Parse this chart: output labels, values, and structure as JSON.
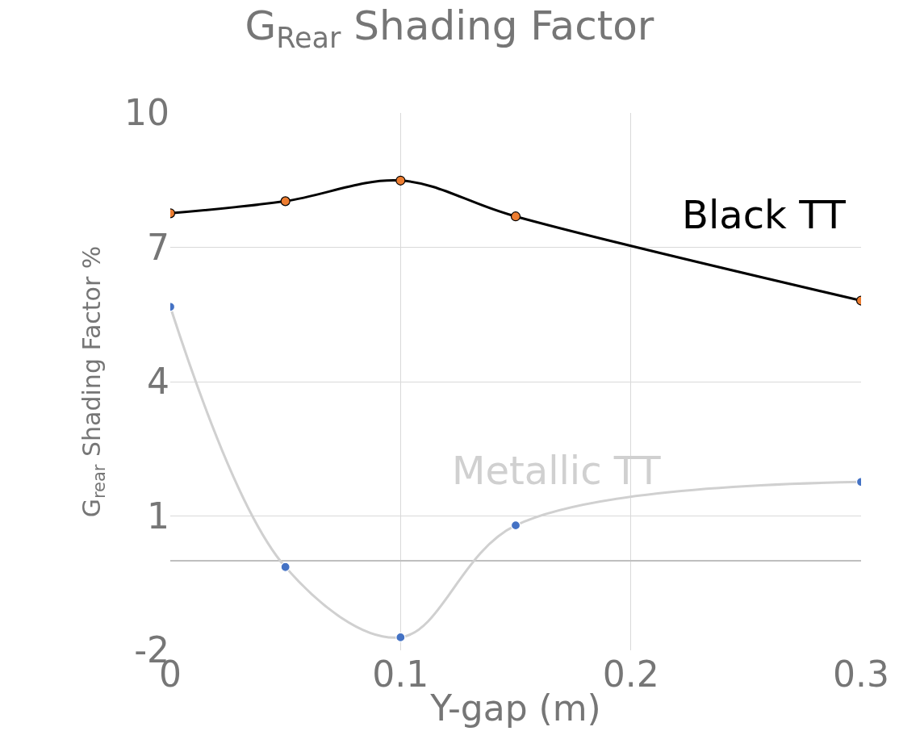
{
  "chart_data": {
    "type": "line",
    "title": "G$_{Rear}$ Shading Factor",
    "xlabel": "Y-gap (m)",
    "ylabel": "G$_{rear}$ Shading Factor %",
    "x": [
      0,
      0.05,
      0.1,
      0.15,
      0.3
    ],
    "series": [
      {
        "name": "Black TT",
        "color": "#000000",
        "colors": [
          "#ed7d31",
          "#ed7d31",
          "#ed7d31",
          "#ed7d31",
          "#ed7d31"
        ],
        "values": [
          7.76,
          8.03,
          8.49,
          7.69,
          5.81
        ]
      },
      {
        "name": "Metallic TT",
        "color": "#d0d0d0",
        "colors": [
          "#4472c4",
          "#4472c4",
          "#4472c4",
          "#4472c4",
          "#4472c4"
        ],
        "values": [
          5.67,
          -0.14,
          -1.71,
          0.79,
          1.76
        ]
      }
    ],
    "xlim": [
      0,
      0.3
    ],
    "xticks": [
      0,
      0.1,
      0.2,
      0.3
    ],
    "ylim": [
      -2,
      10
    ],
    "yticks": [
      -2,
      1,
      4,
      7,
      10
    ],
    "grid": true,
    "marker": "circle",
    "line_style": "solid"
  }
}
